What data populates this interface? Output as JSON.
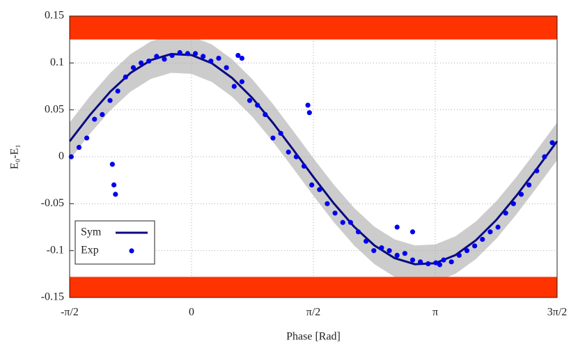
{
  "chart_data": {
    "type": "scatter",
    "xlabel": "Phase [Rad]",
    "ylabel": "E₀-E₁",
    "xlim": [
      -1.5708,
      4.7124
    ],
    "ylim": [
      -0.15,
      0.15
    ],
    "xticks": [
      {
        "value": -1.5708,
        "label": "-π/2"
      },
      0,
      {
        "value": 1.5708,
        "label": "π/2"
      },
      {
        "value": 3.1416,
        "label": "π"
      },
      {
        "value": 4.7124,
        "label": "3π/2"
      }
    ],
    "yticks": [
      -0.15,
      -0.1,
      -0.05,
      0,
      0.05,
      0.1,
      0.15
    ],
    "grid": true,
    "legend": "lower left",
    "regions": [
      {
        "range": [
          0.125,
          0.15
        ],
        "color": "#ff3300"
      },
      {
        "range": [
          -0.15,
          -0.128
        ],
        "color": "#ff3300"
      }
    ],
    "band": {
      "color": "#cccccc",
      "x": [
        -1.5708,
        -1.309,
        -1.0472,
        -0.7854,
        -0.5236,
        -0.2618,
        0,
        0.2618,
        0.5236,
        0.7854,
        1.0472,
        1.309,
        1.5708,
        1.8326,
        2.0944,
        2.3562,
        2.618,
        2.8798,
        3.1416,
        3.4034,
        3.6652,
        3.927,
        4.1888,
        4.4506,
        4.7124
      ],
      "lower": [
        -0.0035,
        0.0245,
        0.0494,
        0.0694,
        0.083,
        0.0895,
        0.0884,
        0.0797,
        0.064,
        0.0425,
        0.0164,
        -0.0122,
        -0.0415,
        -0.0695,
        -0.0944,
        -0.1144,
        -0.128,
        -0.1345,
        -0.1334,
        -0.1247,
        -0.109,
        -0.0875,
        -0.0614,
        -0.0328,
        -0.0035
      ],
      "upper": [
        0.0365,
        0.0645,
        0.0894,
        0.1094,
        0.123,
        0.1295,
        0.1284,
        0.1197,
        0.104,
        0.0825,
        0.0564,
        0.0278,
        -0.0015,
        -0.0295,
        -0.0544,
        -0.0744,
        -0.088,
        -0.0945,
        -0.0934,
        -0.0847,
        -0.069,
        -0.0475,
        -0.0214,
        0.0072,
        0.0365
      ]
    },
    "series": [
      {
        "name": "Sym",
        "kind": "line",
        "color": "#0a0a80",
        "x": [
          -1.5708,
          -1.309,
          -1.0472,
          -0.7854,
          -0.5236,
          -0.2618,
          0,
          0.2618,
          0.5236,
          0.7854,
          1.0472,
          1.309,
          1.5708,
          1.8326,
          2.0944,
          2.3562,
          2.618,
          2.8798,
          3.1416,
          3.4034,
          3.6652,
          3.927,
          4.1888,
          4.4506,
          4.7124
        ],
        "values": [
          0.0165,
          0.0445,
          0.0694,
          0.0894,
          0.103,
          0.1095,
          0.1084,
          0.0997,
          0.084,
          0.0625,
          0.0364,
          0.0078,
          -0.0215,
          -0.0495,
          -0.0744,
          -0.0944,
          -0.108,
          -0.1145,
          -0.1134,
          -0.1047,
          -0.089,
          -0.0675,
          -0.0414,
          -0.0128,
          0.0165
        ]
      },
      {
        "name": "Exp",
        "kind": "points",
        "color": "#0000ee",
        "x": [
          -1.55,
          -1.45,
          -1.35,
          -1.25,
          -1.15,
          -1.05,
          -0.95,
          -0.85,
          -0.75,
          -0.65,
          -0.55,
          -0.45,
          -0.35,
          -0.25,
          -0.15,
          -0.05,
          0.05,
          0.15,
          0.25,
          0.35,
          0.45,
          0.55,
          0.65,
          0.75,
          0.85,
          0.95,
          1.05,
          1.15,
          1.25,
          1.35,
          1.45,
          1.55,
          1.65,
          1.75,
          1.85,
          1.95,
          2.05,
          2.15,
          2.25,
          2.35,
          2.45,
          2.55,
          2.65,
          2.75,
          2.85,
          2.95,
          3.05,
          3.15,
          3.25,
          3.35,
          3.45,
          3.55,
          3.65,
          3.75,
          3.85,
          3.95,
          4.05,
          4.15,
          4.25,
          4.35,
          4.45,
          4.55,
          4.65,
          -1.0,
          -0.98,
          -1.02,
          1.5,
          1.52,
          2.65,
          2.85,
          3.2,
          0.6,
          0.65
        ],
        "values": [
          0.0,
          0.01,
          0.02,
          0.04,
          0.045,
          0.06,
          0.07,
          0.085,
          0.095,
          0.1,
          0.102,
          0.107,
          0.104,
          0.108,
          0.111,
          0.11,
          0.11,
          0.107,
          0.102,
          0.105,
          0.095,
          0.075,
          0.08,
          0.06,
          0.055,
          0.045,
          0.02,
          0.025,
          0.005,
          0.0,
          -0.01,
          -0.03,
          -0.035,
          -0.05,
          -0.06,
          -0.07,
          -0.07,
          -0.08,
          -0.09,
          -0.1,
          -0.097,
          -0.1,
          -0.105,
          -0.103,
          -0.11,
          -0.112,
          -0.114,
          -0.113,
          -0.11,
          -0.112,
          -0.105,
          -0.1,
          -0.095,
          -0.088,
          -0.08,
          -0.075,
          -0.06,
          -0.05,
          -0.04,
          -0.03,
          -0.015,
          0.0,
          0.015,
          -0.03,
          -0.04,
          -0.008,
          0.055,
          0.047,
          -0.075,
          -0.08,
          -0.115,
          0.108,
          0.105
        ]
      }
    ]
  }
}
